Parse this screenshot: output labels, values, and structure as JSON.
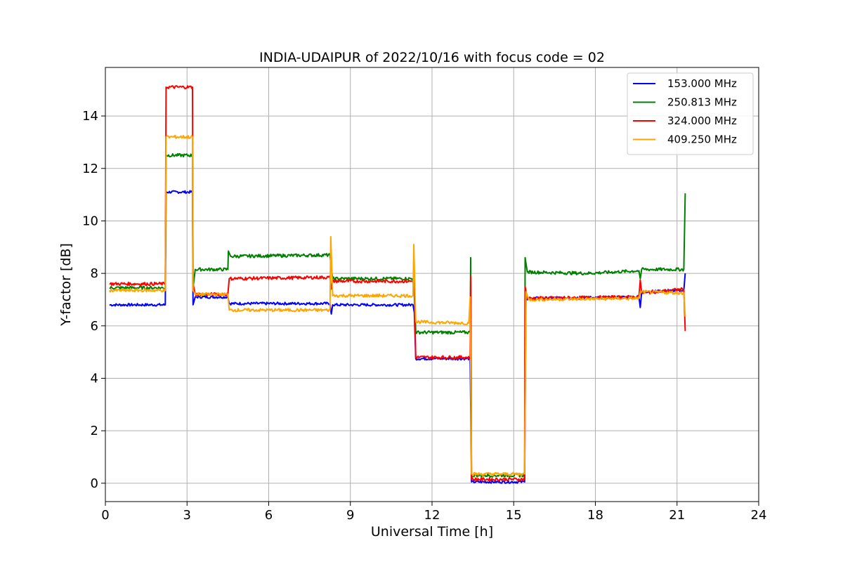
{
  "chart_data": {
    "type": "line",
    "title": "INDIA-UDAIPUR of 2022/10/16 with focus code = 02",
    "xlabel": "Universal Time [h]",
    "ylabel": "Y-factor [dB]",
    "xlim": [
      0,
      24
    ],
    "ylim": [
      -0.7,
      15.85
    ],
    "xticks": [
      0,
      3,
      6,
      9,
      12,
      15,
      18,
      21,
      24
    ],
    "yticks": [
      0,
      2,
      4,
      6,
      8,
      10,
      12,
      14
    ],
    "grid": true,
    "legend_position": "top-right",
    "series": [
      {
        "name": "153.000 MHz",
        "color": "#0000ff",
        "noise": 0.05,
        "points": [
          [
            0.15,
            6.8
          ],
          [
            2.2,
            6.8
          ],
          [
            2.23,
            11.1
          ],
          [
            3.2,
            11.1
          ],
          [
            3.22,
            6.8
          ],
          [
            3.3,
            7.1
          ],
          [
            4.5,
            7.1
          ],
          [
            4.55,
            6.85
          ],
          [
            8.25,
            6.85
          ],
          [
            8.3,
            6.45
          ],
          [
            8.35,
            6.8
          ],
          [
            11.3,
            6.8
          ],
          [
            11.35,
            6.5
          ],
          [
            11.4,
            4.75
          ],
          [
            13.4,
            4.75
          ],
          [
            13.45,
            0.05
          ],
          [
            15.4,
            0.05
          ],
          [
            15.45,
            7.0
          ],
          [
            15.55,
            7.0
          ],
          [
            15.6,
            7.05
          ],
          [
            19.6,
            7.1
          ],
          [
            19.65,
            6.7
          ],
          [
            19.7,
            7.3
          ],
          [
            21.25,
            7.35
          ],
          [
            21.3,
            8.0
          ]
        ]
      },
      {
        "name": "250.813 MHz",
        "color": "#008000",
        "noise": 0.06,
        "points": [
          [
            0.15,
            7.45
          ],
          [
            2.2,
            7.45
          ],
          [
            2.23,
            12.5
          ],
          [
            3.2,
            12.5
          ],
          [
            3.22,
            7.45
          ],
          [
            3.3,
            8.15
          ],
          [
            4.5,
            8.15
          ],
          [
            4.52,
            8.85
          ],
          [
            4.6,
            8.65
          ],
          [
            8.25,
            8.7
          ],
          [
            8.3,
            8.2
          ],
          [
            8.35,
            7.8
          ],
          [
            11.3,
            7.8
          ],
          [
            11.35,
            7.6
          ],
          [
            11.4,
            5.75
          ],
          [
            13.4,
            5.75
          ],
          [
            13.42,
            8.6
          ],
          [
            13.45,
            0.3
          ],
          [
            15.4,
            0.3
          ],
          [
            15.42,
            8.6
          ],
          [
            15.5,
            8.05
          ],
          [
            17.7,
            8.0
          ],
          [
            19.6,
            8.1
          ],
          [
            19.65,
            7.8
          ],
          [
            19.7,
            8.15
          ],
          [
            21.25,
            8.15
          ],
          [
            21.3,
            11.05
          ]
        ]
      },
      {
        "name": "324.000 MHz",
        "color": "#ff0000",
        "noise": 0.06,
        "points": [
          [
            0.15,
            7.6
          ],
          [
            2.2,
            7.6
          ],
          [
            2.23,
            15.1
          ],
          [
            3.2,
            15.1
          ],
          [
            3.22,
            7.6
          ],
          [
            3.3,
            7.2
          ],
          [
            4.5,
            7.2
          ],
          [
            4.55,
            7.8
          ],
          [
            8.25,
            7.85
          ],
          [
            8.3,
            7.4
          ],
          [
            8.35,
            7.7
          ],
          [
            11.3,
            7.7
          ],
          [
            11.35,
            7.3
          ],
          [
            11.4,
            4.8
          ],
          [
            13.4,
            4.8
          ],
          [
            13.42,
            7.9
          ],
          [
            13.45,
            0.15
          ],
          [
            15.4,
            0.15
          ],
          [
            15.42,
            7.5
          ],
          [
            15.5,
            7.05
          ],
          [
            19.6,
            7.1
          ],
          [
            19.65,
            7.75
          ],
          [
            19.7,
            7.25
          ],
          [
            21.25,
            7.4
          ],
          [
            21.3,
            5.8
          ]
        ]
      },
      {
        "name": "409.250 MHz",
        "color": "#ffa500",
        "noise": 0.06,
        "points": [
          [
            0.15,
            7.35
          ],
          [
            2.2,
            7.35
          ],
          [
            2.23,
            13.2
          ],
          [
            3.2,
            13.2
          ],
          [
            3.22,
            7.35
          ],
          [
            3.3,
            7.2
          ],
          [
            4.5,
            7.2
          ],
          [
            4.55,
            6.6
          ],
          [
            8.25,
            6.6
          ],
          [
            8.28,
            9.4
          ],
          [
            8.35,
            7.15
          ],
          [
            11.3,
            7.15
          ],
          [
            11.33,
            9.1
          ],
          [
            11.4,
            6.15
          ],
          [
            13.35,
            6.1
          ],
          [
            13.4,
            7.1
          ],
          [
            13.45,
            0.35
          ],
          [
            15.4,
            0.35
          ],
          [
            15.45,
            7.3
          ],
          [
            15.55,
            7.0
          ],
          [
            19.6,
            7.05
          ],
          [
            19.65,
            7.3
          ],
          [
            21.25,
            7.25
          ],
          [
            21.3,
            6.35
          ]
        ]
      }
    ]
  }
}
